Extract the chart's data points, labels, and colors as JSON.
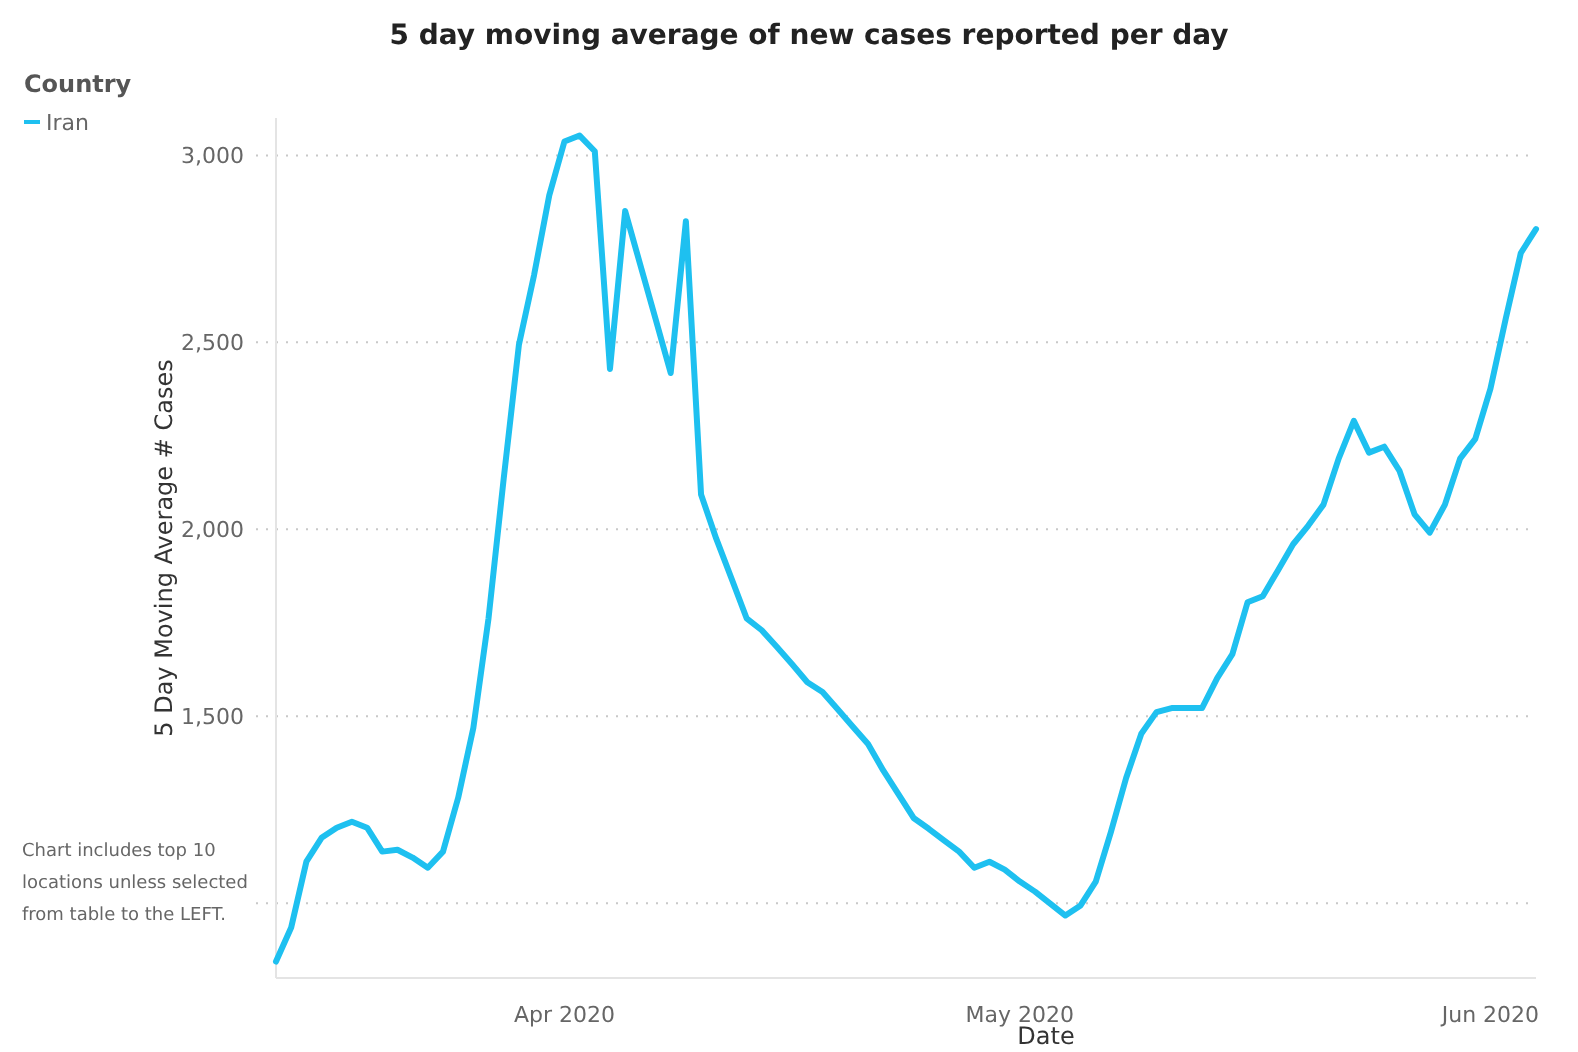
{
  "chart_data": {
    "type": "line",
    "title": "5 day moving average of new cases reported per day",
    "xlabel": "Date",
    "ylabel": "5 Day Moving Average # Cases",
    "legend_title": "Country",
    "legend": "top left",
    "grid": "y",
    "line_style": "solid",
    "marker": "none",
    "annotations": [
      "Chart includes top 10 locations unless selected from table to the LEFT."
    ],
    "xticks": [
      {
        "value": "2020-04-01",
        "label": "Apr 2020"
      },
      {
        "value": "2020-05-01",
        "label": "May 2020"
      },
      {
        "value": "2020-06-01",
        "label": "Jun 2020"
      }
    ],
    "xlim": [
      "2020-03-13",
      "2020-06-04"
    ],
    "ylim": [
      800,
      3100
    ],
    "yticks": [
      {
        "value": 1000,
        "label": null
      },
      {
        "value": 1500,
        "label": "1,500"
      },
      {
        "value": 2000,
        "label": "2,000"
      },
      {
        "value": 2500,
        "label": "2,500"
      },
      {
        "value": 3000,
        "label": "3,000"
      }
    ],
    "x": [
      "2020-03-13",
      "2020-03-14",
      "2020-03-15",
      "2020-03-16",
      "2020-03-17",
      "2020-03-18",
      "2020-03-19",
      "2020-03-20",
      "2020-03-21",
      "2020-03-22",
      "2020-03-23",
      "2020-03-24",
      "2020-03-25",
      "2020-03-26",
      "2020-03-27",
      "2020-03-28",
      "2020-03-29",
      "2020-03-30",
      "2020-03-31",
      "2020-04-01",
      "2020-04-02",
      "2020-04-03",
      "2020-04-04",
      "2020-04-05",
      "2020-04-06",
      "2020-04-07",
      "2020-04-08",
      "2020-04-09",
      "2020-04-10",
      "2020-04-11",
      "2020-04-12",
      "2020-04-13",
      "2020-04-14",
      "2020-04-15",
      "2020-04-16",
      "2020-04-17",
      "2020-04-18",
      "2020-04-19",
      "2020-04-20",
      "2020-04-21",
      "2020-04-22",
      "2020-04-23",
      "2020-04-24",
      "2020-04-25",
      "2020-04-26",
      "2020-04-27",
      "2020-04-28",
      "2020-04-29",
      "2020-04-30",
      "2020-05-01",
      "2020-05-02",
      "2020-05-03",
      "2020-05-04",
      "2020-05-05",
      "2020-05-06",
      "2020-05-07",
      "2020-05-08",
      "2020-05-09",
      "2020-05-10",
      "2020-05-11",
      "2020-05-12",
      "2020-05-13",
      "2020-05-14",
      "2020-05-15",
      "2020-05-16",
      "2020-05-17",
      "2020-05-18",
      "2020-05-19",
      "2020-05-20",
      "2020-05-21",
      "2020-05-22",
      "2020-05-23",
      "2020-05-24",
      "2020-05-25",
      "2020-05-26",
      "2020-05-27",
      "2020-05-28",
      "2020-05-29",
      "2020-05-30",
      "2020-05-31",
      "2020-06-01",
      "2020-06-02",
      "2020-06-03",
      "2020-06-04"
    ],
    "series": [
      {
        "name": "Iran",
        "color": "#1ec0f0",
        "values": [
          844,
          935,
          1111,
          1175,
          1202,
          1218,
          1202,
          1138,
          1143,
          1122,
          1095,
          1138,
          1282,
          1469,
          1762,
          2136,
          2493,
          2680,
          2893,
          3037,
          3053,
          3011,
          2429,
          2851,
          2707,
          2563,
          2418,
          2824,
          2093,
          1975,
          1869,
          1762,
          1730,
          1685,
          1639,
          1591,
          1565,
          1519,
          1472,
          1426,
          1355,
          1292,
          1228,
          1199,
          1168,
          1138,
          1095,
          1111,
          1090,
          1058,
          1031,
          999,
          967,
          994,
          1058,
          1191,
          1335,
          1453,
          1511,
          1522,
          1522,
          1522,
          1602,
          1666,
          1805,
          1821,
          1890,
          1960,
          2010,
          2066,
          2189,
          2290,
          2205,
          2221,
          2157,
          2040,
          1991,
          2066,
          2189,
          2242,
          2376,
          2562,
          2739,
          2803
        ]
      }
    ]
  }
}
